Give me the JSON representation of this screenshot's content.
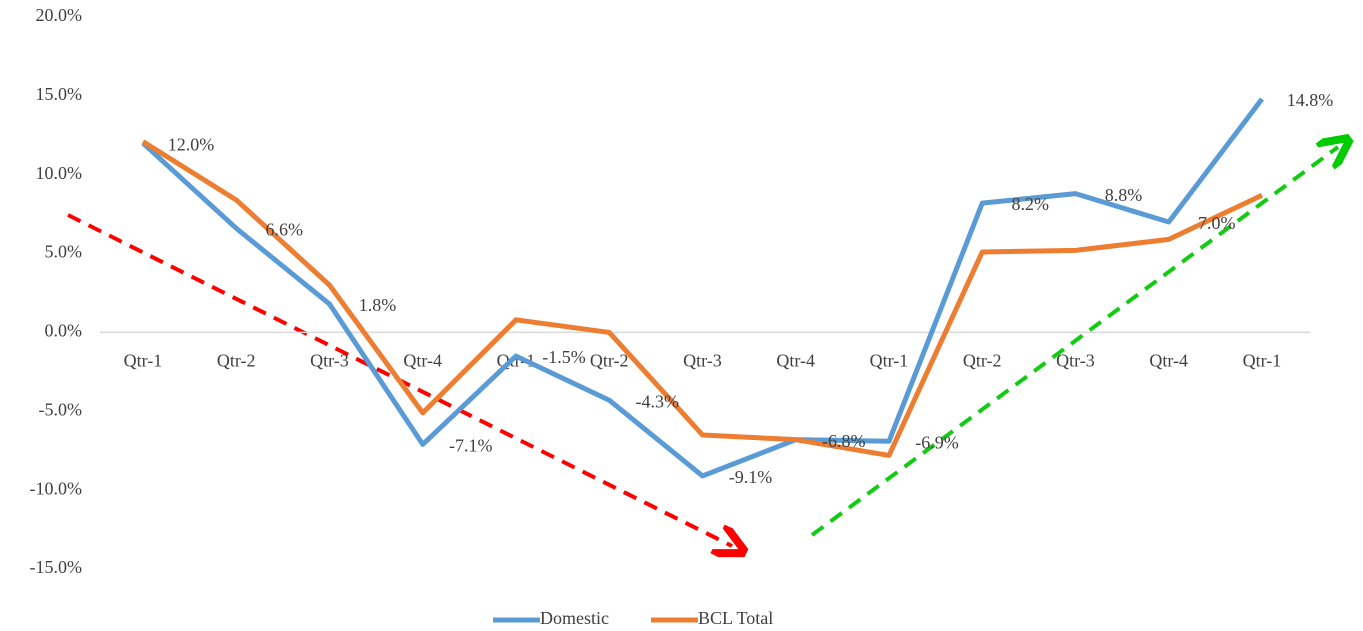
{
  "chart_data": {
    "type": "line",
    "categories": [
      "Qtr-1",
      "Qtr-2",
      "Qtr-3",
      "Qtr-4",
      "Qtr-1",
      "Qtr-2",
      "Qtr-3",
      "Qtr-4",
      "Qtr-1",
      "Qtr-2",
      "Qtr-3",
      "Qtr-4",
      "Qtr-1"
    ],
    "series": [
      {
        "name": "Domestic",
        "color": "#5b9bd5",
        "values": [
          12.0,
          6.6,
          1.8,
          -7.1,
          -1.5,
          -4.3,
          -9.1,
          -6.8,
          -6.9,
          8.2,
          8.8,
          7.0,
          14.8
        ],
        "value_labels": [
          "12.0%",
          "6.6%",
          "1.8%",
          "-7.1%",
          "-1.5%",
          "-4.3%",
          "-9.1%",
          "-6.8%",
          "-6.9%",
          "8.2%",
          "8.8%",
          "7.0%",
          "14.8%"
        ]
      },
      {
        "name": "BCL Total",
        "color": "#ed7d31",
        "values": [
          12.1,
          8.4,
          3.0,
          -5.1,
          0.8,
          0.0,
          -6.5,
          -6.8,
          -7.8,
          5.1,
          5.2,
          5.9,
          8.7
        ]
      }
    ],
    "ylim": [
      -15,
      20
    ],
    "yticks": [
      {
        "value": -15,
        "label": "-15.0%"
      },
      {
        "value": -10,
        "label": "-10.0%"
      },
      {
        "value": -5,
        "label": "-5.0%"
      },
      {
        "value": 0,
        "label": "0.0%"
      },
      {
        "value": 5,
        "label": "5.0%"
      },
      {
        "value": 10,
        "label": "10.0%"
      },
      {
        "value": 15,
        "label": "15.0%"
      },
      {
        "value": 20,
        "label": "20.0%"
      }
    ],
    "grid": false,
    "legend": "bottom"
  }
}
